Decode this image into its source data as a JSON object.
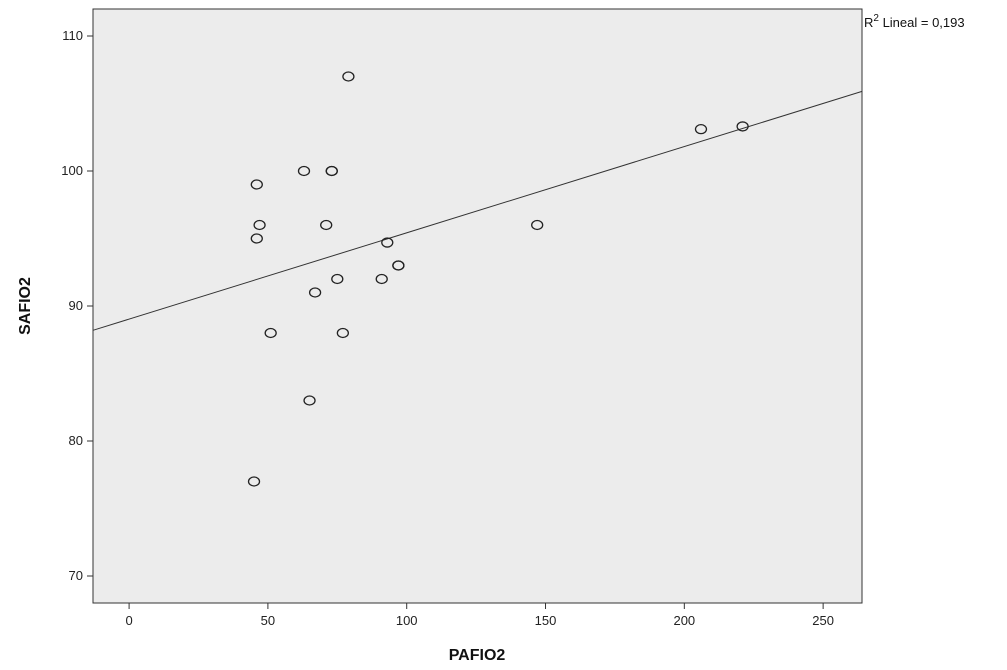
{
  "chart_data": {
    "type": "scatter",
    "xlabel": "PAFIO2",
    "ylabel": "SAFIO2",
    "xlim": [
      -13,
      264
    ],
    "ylim": [
      68,
      112
    ],
    "xticks": [
      0,
      50,
      100,
      150,
      200,
      250
    ],
    "yticks": [
      70,
      80,
      90,
      100,
      110
    ],
    "grid": false,
    "plot_background": "#ececec",
    "marker": "open-circle",
    "points": [
      {
        "x": 45,
        "y": 77
      },
      {
        "x": 46,
        "y": 95
      },
      {
        "x": 46,
        "y": 99
      },
      {
        "x": 47,
        "y": 96
      },
      {
        "x": 51,
        "y": 88
      },
      {
        "x": 63,
        "y": 100
      },
      {
        "x": 65,
        "y": 83
      },
      {
        "x": 67,
        "y": 91
      },
      {
        "x": 71,
        "y": 96
      },
      {
        "x": 73,
        "y": 100
      },
      {
        "x": 73,
        "y": 100
      },
      {
        "x": 75,
        "y": 92
      },
      {
        "x": 77,
        "y": 88
      },
      {
        "x": 79,
        "y": 107
      },
      {
        "x": 91,
        "y": 92
      },
      {
        "x": 93,
        "y": 94.7
      },
      {
        "x": 97,
        "y": 93
      },
      {
        "x": 97,
        "y": 93
      },
      {
        "x": 147,
        "y": 96
      },
      {
        "x": 206,
        "y": 103.1
      },
      {
        "x": 221,
        "y": 103.3
      }
    ],
    "fit_line": {
      "x": [
        -13,
        264
      ],
      "y": [
        88.2,
        105.9
      ]
    },
    "annotation": {
      "label_main": "R",
      "label_sup": "2",
      "label_rest": " Lineal = 0,193"
    }
  }
}
